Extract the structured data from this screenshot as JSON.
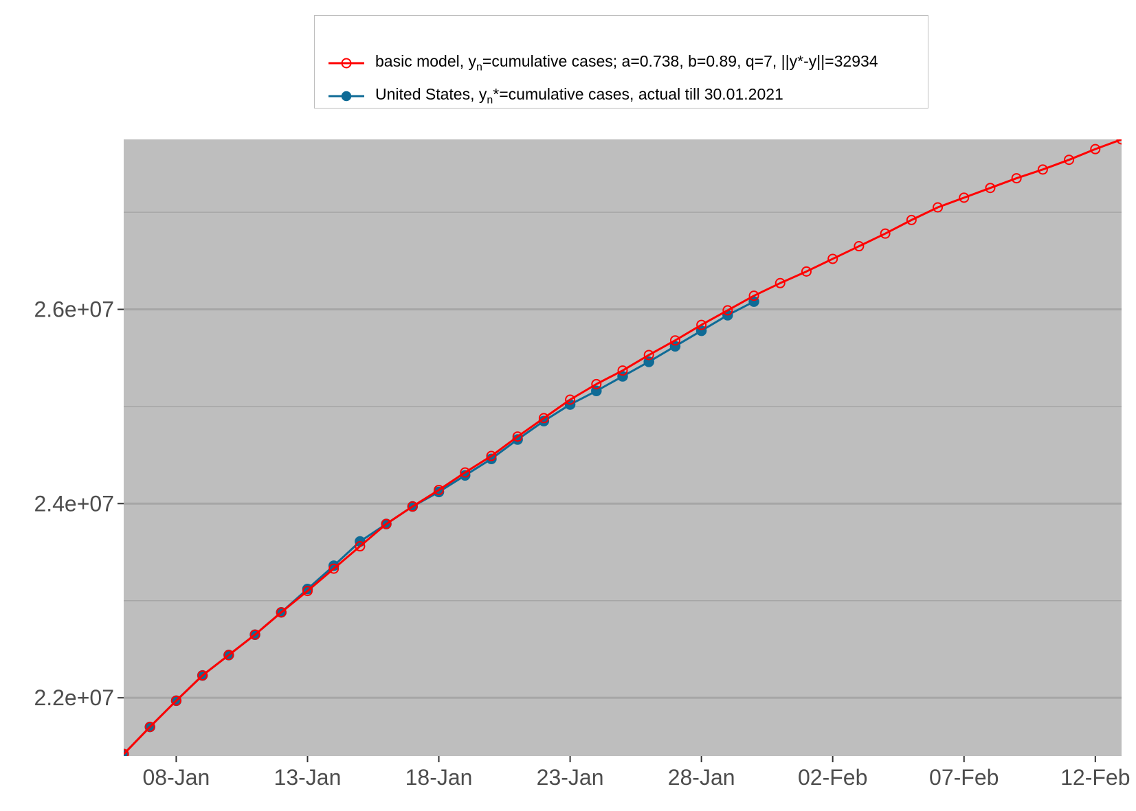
{
  "legend": {
    "model_prefix": "basic model,  y",
    "model_sub": "n",
    "model_suffix": "=cumulative cases; a=0.738, b=0.89, q=7, ||y*-y||=32934",
    "actual_prefix": "United States, y",
    "actual_sub": "n",
    "actual_suffix": "*=cumulative cases, actual till 30.01.2021"
  },
  "chart_data": {
    "type": "line",
    "grid": true,
    "background": "#bebebe",
    "x_start": "2021-01-06",
    "xlim": [
      "2021-01-06",
      "2021-02-13"
    ],
    "ylim": [
      21400000,
      27750000
    ],
    "y_ticks": [
      22000000,
      24000000,
      26000000
    ],
    "y_tick_labels": [
      "2.2e+07",
      "2.4e+07",
      "2.6e+07"
    ],
    "x_ticks": [
      "2021-01-08",
      "2021-01-13",
      "2021-01-18",
      "2021-01-23",
      "2021-01-28",
      "2021-02-02",
      "2021-02-07",
      "2021-02-12"
    ],
    "x_tick_labels": [
      "08-Jan",
      "13-Jan",
      "18-Jan",
      "23-Jan",
      "28-Jan",
      "02-Feb",
      "07-Feb",
      "12-Feb"
    ],
    "series": [
      {
        "name": "United States, yn*=cumulative cases, actual till 30.01.2021",
        "color": "#0f6b96",
        "marker": "filled-circle",
        "x": [
          "2021-01-06",
          "2021-01-07",
          "2021-01-08",
          "2021-01-09",
          "2021-01-10",
          "2021-01-11",
          "2021-01-12",
          "2021-01-13",
          "2021-01-14",
          "2021-01-15",
          "2021-01-16",
          "2021-01-17",
          "2021-01-18",
          "2021-01-19",
          "2021-01-20",
          "2021-01-21",
          "2021-01-22",
          "2021-01-23",
          "2021-01-24",
          "2021-01-25",
          "2021-01-26",
          "2021-01-27",
          "2021-01-28",
          "2021-01-29",
          "2021-01-30"
        ],
        "values": [
          21420000,
          21700000,
          21970000,
          22230000,
          22440000,
          22650000,
          22880000,
          23120000,
          23360000,
          23610000,
          23790000,
          23970000,
          24120000,
          24290000,
          24460000,
          24660000,
          24850000,
          25020000,
          25160000,
          25310000,
          25460000,
          25620000,
          25780000,
          25940000,
          26080000
        ]
      },
      {
        "name": "basic model,  yn=cumulative cases; a=0.738, b=0.89, q=7, ||y*-y||=32934",
        "color": "#ff0000",
        "marker": "open-circle",
        "x": [
          "2021-01-06",
          "2021-01-07",
          "2021-01-08",
          "2021-01-09",
          "2021-01-10",
          "2021-01-11",
          "2021-01-12",
          "2021-01-13",
          "2021-01-14",
          "2021-01-15",
          "2021-01-16",
          "2021-01-17",
          "2021-01-18",
          "2021-01-19",
          "2021-01-20",
          "2021-01-21",
          "2021-01-22",
          "2021-01-23",
          "2021-01-24",
          "2021-01-25",
          "2021-01-26",
          "2021-01-27",
          "2021-01-28",
          "2021-01-29",
          "2021-01-30",
          "2021-01-31",
          "2021-02-01",
          "2021-02-02",
          "2021-02-03",
          "2021-02-04",
          "2021-02-05",
          "2021-02-06",
          "2021-02-07",
          "2021-02-08",
          "2021-02-09",
          "2021-02-10",
          "2021-02-11",
          "2021-02-12",
          "2021-02-13"
        ],
        "values": [
          21420000,
          21700000,
          21970000,
          22230000,
          22440000,
          22650000,
          22880000,
          23100000,
          23330000,
          23560000,
          23790000,
          23970000,
          24140000,
          24320000,
          24490000,
          24690000,
          24880000,
          25070000,
          25230000,
          25370000,
          25530000,
          25680000,
          25840000,
          25990000,
          26140000,
          26270000,
          26390000,
          26520000,
          26650000,
          26780000,
          26920000,
          27050000,
          27150000,
          27250000,
          27350000,
          27440000,
          27540000,
          27650000,
          27750000
        ]
      }
    ]
  }
}
